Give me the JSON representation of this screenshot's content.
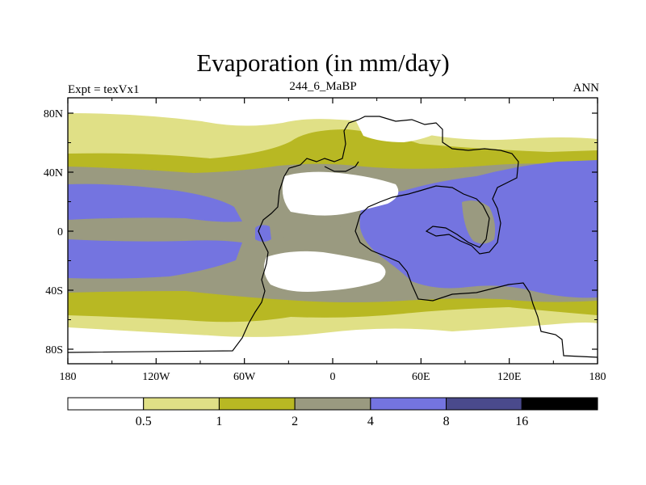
{
  "title": "Evaporation (in mm/day)",
  "left_label": "Expt = texVx1",
  "center_label": "244_6_MaBP",
  "right_label": "ANN",
  "map": {
    "lat_ticks": [
      {
        "label": "80N",
        "lat": 80
      },
      {
        "label": "40N",
        "lat": 40
      },
      {
        "label": "0",
        "lat": 0
      },
      {
        "label": "40S",
        "lat": -40
      },
      {
        "label": "80S",
        "lat": -80
      }
    ],
    "lon_ticks": [
      {
        "label": "180",
        "lon": -180
      },
      {
        "label": "120W",
        "lon": -120
      },
      {
        "label": "60W",
        "lon": -60
      },
      {
        "label": "0",
        "lon": 0
      },
      {
        "label": "60E",
        "lon": 60
      },
      {
        "label": "120E",
        "lon": 120
      },
      {
        "label": "180",
        "lon": 180
      }
    ]
  },
  "colorbar": {
    "colors": [
      "#ffffff",
      "#e0e086",
      "#b8b823",
      "#9a9a80",
      "#7474e0",
      "#4a4a8c",
      "#000000"
    ],
    "labels": [
      "0.5",
      "1",
      "2",
      "4",
      "8",
      "16"
    ]
  },
  "palette": {
    "white": "#ffffff",
    "pale": "#e0e086",
    "olive": "#b8b823",
    "gray": "#9a9a80",
    "blue": "#7474e0"
  }
}
